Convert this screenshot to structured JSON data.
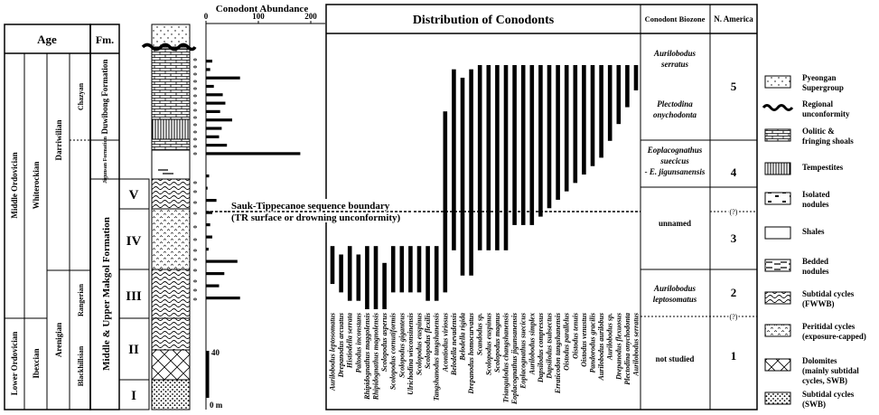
{
  "age_column": {
    "header": "Age",
    "fm_header": "Fm.",
    "series": [
      "Middle Ordovician",
      "Lower Ordovician"
    ],
    "na_series": [
      "Whiterockian",
      "Ibexcian"
    ],
    "stages": [
      "Darriwilian",
      "Arenigian"
    ],
    "substages": [
      "Chazyan",
      "Rangerian",
      "Blackhillsian"
    ]
  },
  "formations": [
    "Duwibong Formation",
    "Jigunsan Formation",
    "Middle & Upper Makgol Formation"
  ],
  "units": [
    "V",
    "IV",
    "III",
    "II",
    "I"
  ],
  "scale_bar": {
    "top_label": "40",
    "bottom_label": "0 m"
  },
  "abundance": {
    "title": "Conodont Abundance",
    "ticks": [
      "0",
      "100",
      "200"
    ],
    "axis_max": 200,
    "bars_above": [
      12,
      8,
      65,
      15,
      32,
      37,
      27,
      50,
      30,
      25,
      40,
      180
    ],
    "bars_below": [
      6,
      3,
      20,
      12,
      8,
      12,
      5,
      60,
      35,
      25,
      65
    ]
  },
  "boundary": {
    "line1": "Sauk-Tippecanoe sequence boundary",
    "line2": "(TR surface or drowning unconformity)"
  },
  "distribution": {
    "title": "Distribution of Conodonts",
    "species": [
      "Aurilobodus leptosomatus",
      "Drepanodus arcuatus",
      "Histiodella serrata",
      "Paltodus inconstans",
      "Rhipidognathus maggolensis",
      "Rhipidognathus magnolensis",
      "Scolopodus asperus",
      "Scolopodus cornutiformis",
      "Scolopodus giganteus",
      "Ulrichodina wisconsinensis",
      "Scolopodus euspinus",
      "Scolopodus flexilis",
      "Tangshanodus tangshanensis",
      "Acontiodus viriosus",
      "Belodella nevadensis",
      "Belodella rigida",
      "Drepanodus homocurvatus",
      "Scandodus sp.",
      "Scolopodus euspinus",
      "Scolopodus magnus",
      "Triangulodus changshanensis",
      "Eoplacognathus jigunsanensis",
      "Eoplacognathus suecicus",
      "Aurilobodus simplex",
      "Dapsilodus compressus",
      "Dapsilodus tsubsectus",
      "Erraticodon tangshanensis",
      "Oistodus parallelus",
      "Oistodus tenuis",
      "Oistodus venustus",
      "Pandorodus gracilis",
      "Aurilobodus aurilobus",
      "Aurilobodus sp.",
      "Drepanodus flexuosus",
      "Plectodina onychodonta",
      "Aurilobodus serratus"
    ],
    "ranges": [
      [
        0.44,
        0.53
      ],
      [
        0.42,
        0.51
      ],
      [
        0.4,
        0.53
      ],
      [
        0.4,
        0.51
      ],
      [
        0.38,
        0.53
      ],
      [
        0.38,
        0.53
      ],
      [
        0.38,
        0.49
      ],
      [
        0.42,
        0.53
      ],
      [
        0.42,
        0.53
      ],
      [
        0.42,
        0.53
      ],
      [
        0.42,
        0.53
      ],
      [
        0.4,
        0.53
      ],
      [
        0.4,
        0.53
      ],
      [
        0.42,
        0.85
      ],
      [
        0.52,
        0.95
      ],
      [
        0.46,
        0.93
      ],
      [
        0.46,
        0.95
      ],
      [
        0.52,
        0.96
      ],
      [
        0.52,
        0.96
      ],
      [
        0.52,
        0.96
      ],
      [
        0.52,
        0.96
      ],
      [
        0.58,
        0.96
      ],
      [
        0.58,
        0.96
      ],
      [
        0.58,
        0.96
      ],
      [
        0.6,
        0.96
      ],
      [
        0.62,
        0.96
      ],
      [
        0.64,
        0.96
      ],
      [
        0.66,
        0.96
      ],
      [
        0.68,
        0.96
      ],
      [
        0.7,
        0.96
      ],
      [
        0.72,
        0.96
      ],
      [
        0.74,
        0.96
      ],
      [
        0.78,
        0.96
      ],
      [
        0.82,
        0.96
      ],
      [
        0.86,
        0.96
      ],
      [
        0.9,
        0.96
      ]
    ]
  },
  "biozone": {
    "header": "Conodont Biozone",
    "zones": [
      {
        "lines": [
          "Aurilobodus",
          "serratus"
        ]
      },
      {
        "lines": [
          "Plectodina",
          "onychodonta"
        ]
      },
      {
        "lines": [
          "Eoplacognathus",
          "suecicus",
          "- E. jigunsanensis"
        ]
      },
      {
        "lines": [
          "unnamed"
        ]
      },
      {
        "lines": [
          "Aurilobodus",
          "leptosomatus"
        ]
      },
      {
        "lines": [
          "not studied"
        ]
      }
    ]
  },
  "north_america": {
    "header": "N. America",
    "zones": [
      "5",
      "4",
      "3",
      "2",
      "1"
    ],
    "uncertain": "(?)"
  },
  "legend": [
    {
      "label": "Pyeongan Supergroup",
      "lines": [
        "Pyeongan",
        "Supergroup"
      ],
      "pattern": "dots"
    },
    {
      "label": "Regional unconformity",
      "lines": [
        "Regional",
        "unconformity"
      ],
      "pattern": "wavy"
    },
    {
      "label": "Oolitic & fringing shoals",
      "lines": [
        "Oolitic &",
        "fringing shoals"
      ],
      "pattern": "brick"
    },
    {
      "label": "Tempestites",
      "lines": [
        "Tempestites"
      ],
      "pattern": "vlines"
    },
    {
      "label": "Isolated nodules",
      "lines": [
        "Isolated",
        "nodules"
      ],
      "pattern": "nodules"
    },
    {
      "label": "Shales",
      "lines": [
        "Shales"
      ],
      "pattern": "blank"
    },
    {
      "label": "Bedded nodules",
      "lines": [
        "Bedded",
        "nodules"
      ],
      "pattern": "bedded"
    },
    {
      "label": "Subtidal cycles (FWWB)",
      "lines": [
        "Subtidal cycles",
        "(FWWB)"
      ],
      "pattern": "waves"
    },
    {
      "label": "Peritidal cycles (exposure-capped)",
      "lines": [
        "Peritidal cycles",
        "(exposure-capped)"
      ],
      "pattern": "carets"
    },
    {
      "label": "Dolomites (mainly subtidal cycles, SWB)",
      "lines": [
        "Dolomites",
        "(mainly subtidal",
        "cycles, SWB)"
      ],
      "pattern": "cross"
    },
    {
      "label": "Subtidal cycles (SWB)",
      "lines": [
        "Subtidal cycles",
        "(SWB)"
      ],
      "pattern": "stipple"
    }
  ]
}
